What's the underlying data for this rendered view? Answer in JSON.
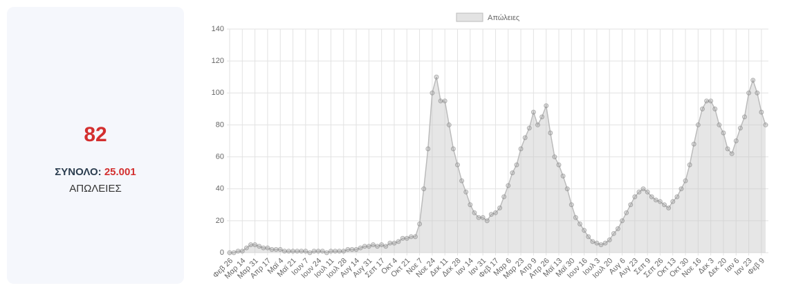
{
  "card": {
    "value": 82,
    "total_label": "ΣΥΝΟΛΟ:",
    "total": "25.001",
    "label": "ΑΠΩΛΕΙΕΣ"
  },
  "chart_data": {
    "type": "area",
    "categories": [
      "Φεβ 26",
      null,
      null,
      "Μαρ 14",
      null,
      null,
      "Μαρ 31",
      null,
      null,
      "Απρ 17",
      null,
      null,
      "Μαϊ 4",
      null,
      null,
      "Μαϊ 21",
      null,
      null,
      "Ιουν 7",
      null,
      null,
      "Ιουν 24",
      null,
      null,
      "Ιουλ 11",
      null,
      null,
      "Ιουλ 28",
      null,
      null,
      "Αυγ 14",
      null,
      null,
      "Αυγ 31",
      null,
      null,
      "Σεπ 17",
      null,
      null,
      "Οκτ 4",
      null,
      null,
      "Οκτ 21",
      null,
      null,
      "Νοε 7",
      null,
      null,
      "Νοε 24",
      null,
      null,
      "Δεκ 11",
      null,
      null,
      "Δεκ 28",
      null,
      null,
      "Ιαν 14",
      null,
      null,
      "Ιαν 31",
      null,
      null,
      "Φεβ 17",
      null,
      null,
      "Μαρ 6",
      null,
      null,
      "Μαρ 23",
      null,
      null,
      "Απρ 9",
      null,
      null,
      "Απρ 26",
      null,
      null,
      "Μαϊ 13",
      null,
      null,
      "Μαϊ 30",
      null,
      null,
      "Ιουν 16",
      null,
      null,
      "Ιουλ 3",
      null,
      null,
      "Ιουλ 20",
      null,
      null,
      "Αυγ 6",
      null,
      null,
      "Αυγ 23",
      null,
      null,
      "Σεπ 9",
      null,
      null,
      "Σεπ 26",
      null,
      null,
      "Οκτ 13",
      null,
      null,
      "Οκτ 30",
      null,
      null,
      "Νοε 16",
      null,
      null,
      "Δεκ 3",
      null,
      null,
      "Δεκ 20",
      null,
      null,
      "Ιαν 6",
      null,
      null,
      "Ιαν 23",
      null,
      null,
      "Φεβ 9",
      null
    ],
    "series": [
      {
        "name": "Απώλειες",
        "color": "#bbbbbb",
        "values": [
          0,
          0,
          1,
          1,
          3,
          5,
          5,
          4,
          3,
          3,
          2,
          2,
          2,
          1,
          1,
          1,
          1,
          1,
          1,
          0,
          1,
          1,
          1,
          0,
          1,
          1,
          1,
          1,
          2,
          2,
          2,
          3,
          4,
          4,
          5,
          4,
          5,
          4,
          6,
          6,
          7,
          9,
          9,
          10,
          10,
          18,
          40,
          65,
          100,
          110,
          95,
          95,
          80,
          65,
          55,
          45,
          38,
          30,
          25,
          22,
          22,
          20,
          24,
          25,
          28,
          35,
          42,
          50,
          55,
          65,
          72,
          78,
          88,
          80,
          85,
          92,
          75,
          60,
          55,
          48,
          40,
          30,
          22,
          18,
          14,
          10,
          7,
          6,
          5,
          6,
          8,
          12,
          15,
          20,
          25,
          30,
          35,
          38,
          40,
          38,
          35,
          33,
          32,
          30,
          28,
          32,
          35,
          40,
          45,
          55,
          68,
          80,
          90,
          95,
          95,
          90,
          80,
          75,
          65,
          62,
          70,
          78,
          85,
          100,
          108,
          100,
          88,
          80
        ]
      }
    ],
    "ylim": [
      0,
      140
    ],
    "yticks": [
      0,
      20,
      40,
      60,
      80,
      100,
      120,
      140
    ],
    "grid": true
  }
}
